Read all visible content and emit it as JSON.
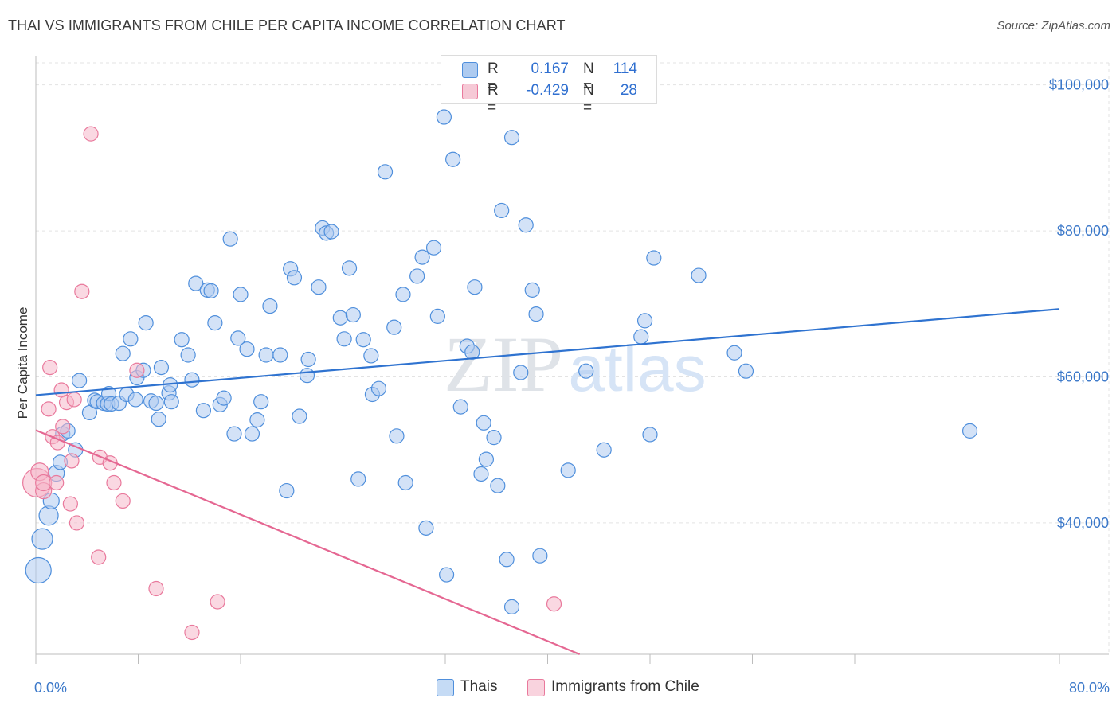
{
  "title": "THAI VS IMMIGRANTS FROM CHILE PER CAPITA INCOME CORRELATION CHART",
  "source": "Source: ZipAtlas.com",
  "watermark": {
    "zip": "ZIP",
    "atlas": "atlas"
  },
  "legend": {
    "rows": [
      {
        "r_label": "R =",
        "r_value": "0.167",
        "n_label": "N =",
        "n_value": "114",
        "color": "#aecbf0"
      },
      {
        "r_label": "R =",
        "r_value": "-0.429",
        "n_label": "N =",
        "n_value": "28",
        "color": "#f6b8ca"
      }
    ]
  },
  "bottom_legend": {
    "series1": "Thais",
    "series2": "Immigrants from Chile"
  },
  "chart_data": {
    "type": "scatter",
    "title": "THAI VS IMMIGRANTS FROM CHILE PER CAPITA INCOME CORRELATION CHART",
    "xlabel": "",
    "ylabel": "Per Capita Income",
    "xlim": [
      0,
      80
    ],
    "ylim": [
      22000,
      104000
    ],
    "x_tick_labels": [
      "0.0%",
      "80.0%"
    ],
    "y_ticks": [
      40000,
      60000,
      80000,
      100000
    ],
    "y_tick_labels": [
      "$40,000",
      "$60,000",
      "$80,000",
      "$100,000"
    ],
    "grid": true,
    "series": [
      {
        "name": "Thais",
        "color": "#4f8fdc",
        "fill": "#aecbf0",
        "trend": {
          "x": [
            0,
            80
          ],
          "y": [
            57500,
            69300
          ]
        },
        "points": [
          [
            0.2,
            33500,
            16
          ],
          [
            0.5,
            37800,
            13
          ],
          [
            1.0,
            41000,
            12
          ],
          [
            1.2,
            43000,
            10
          ],
          [
            1.6,
            46800,
            10
          ],
          [
            1.9,
            48300,
            9
          ],
          [
            2.1,
            52200,
            9
          ],
          [
            2.5,
            52600,
            9
          ],
          [
            3.1,
            50000,
            9
          ],
          [
            3.4,
            59500,
            9
          ],
          [
            4.2,
            55100,
            9
          ],
          [
            4.6,
            56800,
            9
          ],
          [
            4.8,
            56600,
            9
          ],
          [
            5.3,
            56400,
            9
          ],
          [
            5.6,
            56300,
            9
          ],
          [
            5.7,
            57700,
            9
          ],
          [
            5.9,
            56300,
            9
          ],
          [
            6.5,
            56400,
            9
          ],
          [
            6.8,
            63200,
            9
          ],
          [
            7.1,
            57600,
            9
          ],
          [
            7.4,
            65200,
            9
          ],
          [
            7.8,
            56900,
            9
          ],
          [
            7.9,
            59900,
            9
          ],
          [
            8.4,
            60900,
            9
          ],
          [
            8.6,
            67400,
            9
          ],
          [
            9.0,
            56700,
            9
          ],
          [
            9.4,
            56400,
            9
          ],
          [
            9.6,
            54200,
            9
          ],
          [
            9.8,
            61300,
            9
          ],
          [
            10.4,
            57800,
            9
          ],
          [
            10.5,
            58900,
            9
          ],
          [
            10.6,
            56600,
            9
          ],
          [
            11.4,
            65100,
            9
          ],
          [
            11.9,
            63000,
            9
          ],
          [
            12.2,
            59600,
            9
          ],
          [
            12.5,
            72800,
            9
          ],
          [
            13.1,
            55400,
            9
          ],
          [
            13.4,
            71900,
            9
          ],
          [
            13.7,
            71800,
            9
          ],
          [
            14.0,
            67400,
            9
          ],
          [
            14.4,
            56200,
            9
          ],
          [
            14.7,
            57100,
            9
          ],
          [
            15.2,
            78900,
            9
          ],
          [
            15.5,
            52200,
            9
          ],
          [
            15.8,
            65300,
            9
          ],
          [
            16.0,
            71300,
            9
          ],
          [
            16.5,
            63800,
            9
          ],
          [
            16.9,
            52200,
            9
          ],
          [
            17.3,
            54100,
            9
          ],
          [
            17.6,
            56600,
            9
          ],
          [
            18.0,
            63000,
            9
          ],
          [
            18.3,
            69700,
            9
          ],
          [
            19.1,
            63000,
            9
          ],
          [
            19.6,
            44400,
            9
          ],
          [
            19.9,
            74800,
            9
          ],
          [
            20.2,
            73600,
            9
          ],
          [
            20.6,
            54600,
            9
          ],
          [
            21.2,
            60200,
            9
          ],
          [
            21.3,
            62400,
            9
          ],
          [
            22.1,
            72300,
            9
          ],
          [
            22.4,
            80400,
            9
          ],
          [
            22.7,
            79700,
            9
          ],
          [
            23.1,
            79900,
            9
          ],
          [
            23.8,
            68100,
            9
          ],
          [
            24.1,
            65200,
            9
          ],
          [
            24.5,
            74900,
            9
          ],
          [
            24.8,
            68500,
            9
          ],
          [
            25.2,
            46000,
            9
          ],
          [
            25.6,
            65100,
            9
          ],
          [
            26.2,
            62900,
            9
          ],
          [
            26.3,
            57600,
            9
          ],
          [
            26.8,
            58400,
            9
          ],
          [
            27.3,
            88100,
            9
          ],
          [
            28.0,
            66800,
            9
          ],
          [
            28.2,
            51900,
            9
          ],
          [
            28.7,
            71300,
            9
          ],
          [
            28.9,
            45500,
            9
          ],
          [
            29.8,
            73800,
            9
          ],
          [
            30.2,
            76400,
            9
          ],
          [
            30.5,
            39300,
            9
          ],
          [
            31.1,
            77700,
            9
          ],
          [
            31.4,
            68300,
            9
          ],
          [
            31.9,
            95600,
            9
          ],
          [
            32.1,
            32900,
            9
          ],
          [
            32.6,
            89800,
            9
          ],
          [
            33.2,
            55900,
            9
          ],
          [
            33.7,
            64200,
            9
          ],
          [
            34.1,
            63400,
            9
          ],
          [
            34.3,
            72300,
            9
          ],
          [
            34.8,
            46700,
            9
          ],
          [
            35.0,
            53700,
            9
          ],
          [
            35.2,
            48700,
            9
          ],
          [
            35.8,
            51700,
            9
          ],
          [
            36.1,
            45100,
            9
          ],
          [
            36.4,
            82800,
            9
          ],
          [
            36.8,
            35000,
            9
          ],
          [
            37.2,
            28500,
            9
          ],
          [
            37.2,
            92800,
            9
          ],
          [
            37.9,
            60600,
            9
          ],
          [
            38.3,
            80800,
            9
          ],
          [
            38.8,
            71900,
            9
          ],
          [
            39.1,
            68600,
            9
          ],
          [
            39.4,
            35500,
            9
          ],
          [
            41.6,
            47200,
            9
          ],
          [
            43.0,
            60800,
            9
          ],
          [
            44.4,
            50000,
            9
          ],
          [
            47.3,
            65500,
            9
          ],
          [
            47.6,
            67700,
            9
          ],
          [
            48.0,
            52100,
            9
          ],
          [
            48.3,
            76300,
            9
          ],
          [
            51.8,
            73900,
            9
          ],
          [
            54.6,
            63300,
            9
          ],
          [
            55.5,
            60800,
            9
          ],
          [
            73.0,
            52600,
            9
          ]
        ]
      },
      {
        "name": "Immigrants from Chile",
        "color": "#e9799c",
        "fill": "#f6b8ca",
        "trend": {
          "x": [
            0,
            42.5
          ],
          "y": [
            52700,
            22000
          ]
        },
        "points": [
          [
            0.1,
            45500,
            18
          ],
          [
            0.3,
            47000,
            11
          ],
          [
            0.6,
            44400,
            10
          ],
          [
            0.6,
            45500,
            10
          ],
          [
            1.0,
            55600,
            9
          ],
          [
            1.1,
            61300,
            9
          ],
          [
            1.3,
            51800,
            9
          ],
          [
            1.6,
            45500,
            9
          ],
          [
            1.7,
            51000,
            9
          ],
          [
            2.0,
            58200,
            9
          ],
          [
            2.1,
            53200,
            9
          ],
          [
            2.4,
            56500,
            9
          ],
          [
            2.7,
            42600,
            9
          ],
          [
            2.8,
            48500,
            9
          ],
          [
            3.0,
            56900,
            9
          ],
          [
            3.2,
            40000,
            9
          ],
          [
            3.6,
            71700,
            9
          ],
          [
            4.3,
            93300,
            9
          ],
          [
            4.9,
            35300,
            9
          ],
          [
            5.0,
            49000,
            9
          ],
          [
            5.8,
            48200,
            9
          ],
          [
            6.1,
            45500,
            9
          ],
          [
            6.8,
            43000,
            9
          ],
          [
            7.9,
            60900,
            9
          ],
          [
            9.4,
            31000,
            9
          ],
          [
            12.2,
            25000,
            9
          ],
          [
            14.2,
            29200,
            9
          ],
          [
            40.5,
            28900,
            9
          ]
        ]
      }
    ]
  }
}
